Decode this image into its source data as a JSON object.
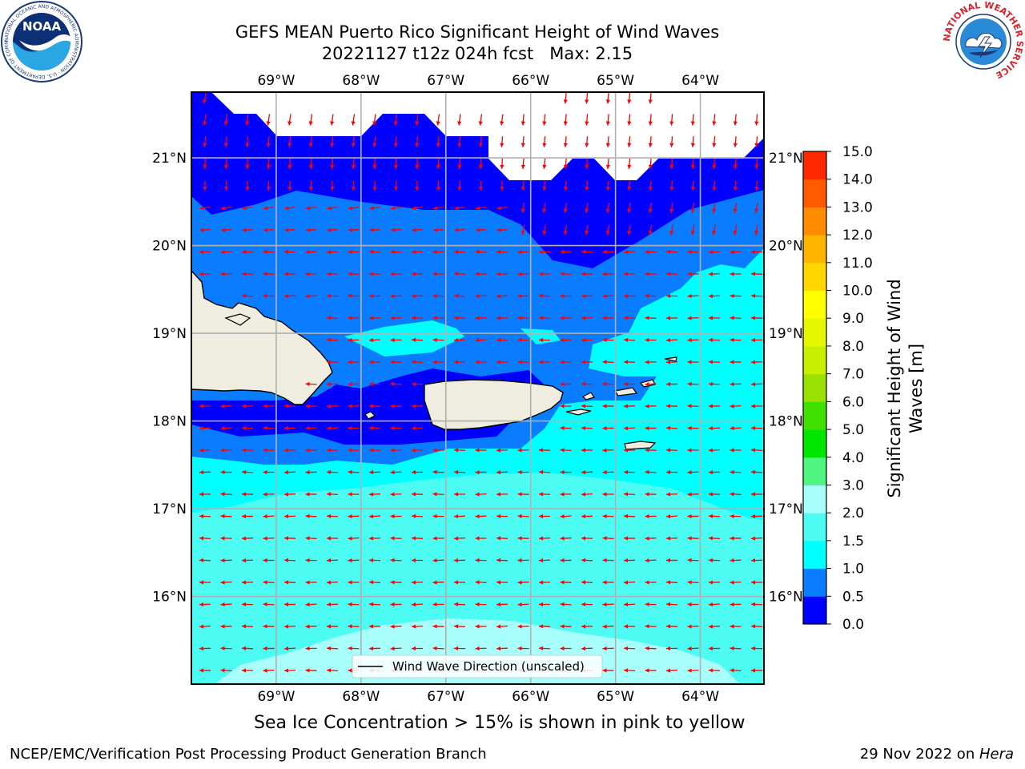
{
  "header": {
    "title_line1": "GEFS MEAN Puerto Rico Significant Height of Wind Waves",
    "title_line2": "20221127 t12z 024h fcst   Max: 2.15"
  },
  "logos": {
    "noaa_text": "NOAA",
    "noaa_ring": "NATIONAL OCEANIC AND ATMOSPHERIC ADMINISTRATION · U.S. DEPARTMENT OF COMMERCE",
    "nws_ring": "NATIONAL WEATHER SERVICE"
  },
  "footer": {
    "ice_note": "Sea Ice Concentration > 15% is shown in pink to yellow",
    "credit": "NCEP/EMC/Verification Post Processing Product Generation Branch",
    "date_prefix": "29 Nov 2022 on ",
    "date_machine": "Hera"
  },
  "chart_data": {
    "type": "heatmap",
    "title": "GEFS MEAN Puerto Rico Significant Height of Wind Waves",
    "subtitle": "20221127 t12z 024h fcst   Max: 2.15",
    "variable": "Significant Height of Wind Waves [m]",
    "max_value": 2.15,
    "xlim": [
      -70.0,
      -63.25
    ],
    "ylim": [
      15.0,
      21.75
    ],
    "x_ticks": [
      -69,
      -68,
      -67,
      -66,
      -65,
      -64
    ],
    "x_tick_labels": [
      "69°W",
      "68°W",
      "67°W",
      "66°W",
      "65°W",
      "64°W"
    ],
    "y_ticks": [
      16,
      17,
      18,
      19,
      20,
      21
    ],
    "y_tick_labels": [
      "16°N",
      "17°N",
      "18°N",
      "19°N",
      "20°N",
      "21°N"
    ],
    "grid": true,
    "legend": {
      "label": "Wind Wave Direction (unscaled)",
      "placement": "bottom-center"
    },
    "colorbar": {
      "label_line1": "Significant Height of Wind",
      "label_line2": "Waves [m]",
      "levels": [
        0.0,
        0.5,
        1.0,
        1.5,
        2.0,
        3.0,
        4.0,
        5.0,
        6.0,
        7.0,
        8.0,
        9.0,
        10.0,
        11.0,
        12.0,
        13.0,
        14.0,
        15.0
      ],
      "tick_labels": [
        "0.0",
        "0.5",
        "1.0",
        "1.5",
        "2.0",
        "3.0",
        "4.0",
        "5.0",
        "6.0",
        "7.0",
        "8.0",
        "9.0",
        "10.0",
        "11.0",
        "12.0",
        "13.0",
        "14.0",
        "15.0"
      ],
      "colors": [
        "#0000ff",
        "#0a7cff",
        "#00ffff",
        "#4cfcf2",
        "#a8fefa",
        "#4ef580",
        "#00e600",
        "#40e000",
        "#9ae000",
        "#c8ef00",
        "#e6f500",
        "#ffff00",
        "#ffd700",
        "#ffb400",
        "#ff8c00",
        "#ff5a00",
        "#ff2800"
      ]
    },
    "regions": [
      {
        "label": "0.0-0.5 m",
        "area": "northern band near 21°N, Mona Passage and waters south of Hispaniola"
      },
      {
        "label": "0.5-1.0 m",
        "area": "band between 19°N and 20.5°N north of Hispaniola and Puerto Rico"
      },
      {
        "label": "1.0-1.5 m",
        "area": "east of 66°W and south of 17.5°N"
      },
      {
        "label": "1.5-2.0 m",
        "area": "southern waters 15.5°N-17°N"
      },
      {
        "label": "2.0-3.0 m",
        "area": "southern edge near 15°N between 68.5°W and 65°W"
      }
    ],
    "wind_wave_direction": "mostly toward the west (east-to-west); toward the south-southwest north of 20°N",
    "land": [
      "Hispaniola (east)",
      "Puerto Rico",
      "Virgin Islands"
    ],
    "colors": {
      "land": "#efeddf",
      "vector": "#ff0000",
      "grid": "#b0b0b0"
    }
  }
}
